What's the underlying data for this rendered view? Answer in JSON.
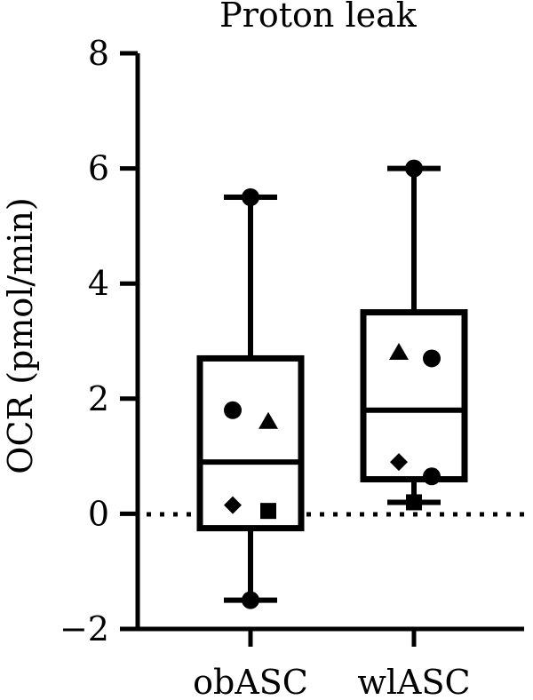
{
  "chart_data": {
    "type": "box",
    "title": "Proton leak",
    "ylabel": "OCR (pmol/min)",
    "xlabel": "",
    "ylim": [
      -2,
      8
    ],
    "yticks": [
      -2,
      0,
      2,
      4,
      6,
      8
    ],
    "ytick_labels": [
      "−2",
      "0",
      "2",
      "4",
      "6",
      "8"
    ],
    "reference_line": {
      "y": 0,
      "style": "dotted"
    },
    "categories": [
      "obASC",
      "wlASC"
    ],
    "boxes": [
      {
        "name": "obASC",
        "whisker_low": -1.5,
        "q1": -0.25,
        "median": 0.9,
        "q3": 2.7,
        "whisker_high": 5.5,
        "points": [
          {
            "marker": "circle",
            "y": 1.8
          },
          {
            "marker": "triangle",
            "y": 1.6
          },
          {
            "marker": "diamond",
            "y": 0.15
          },
          {
            "marker": "square",
            "y": 0.05
          },
          {
            "marker": "circle",
            "y": 5.5
          },
          {
            "marker": "circle",
            "y": -1.5
          }
        ]
      },
      {
        "name": "wlASC",
        "whisker_low": 0.2,
        "q1": 0.6,
        "median": 1.8,
        "q3": 3.5,
        "whisker_high": 6.0,
        "points": [
          {
            "marker": "triangle",
            "y": 2.8
          },
          {
            "marker": "circle",
            "y": 2.7
          },
          {
            "marker": "diamond",
            "y": 0.9
          },
          {
            "marker": "circle",
            "y": 0.65
          },
          {
            "marker": "square",
            "y": 0.2
          },
          {
            "marker": "circle",
            "y": 6.0
          }
        ]
      }
    ]
  }
}
